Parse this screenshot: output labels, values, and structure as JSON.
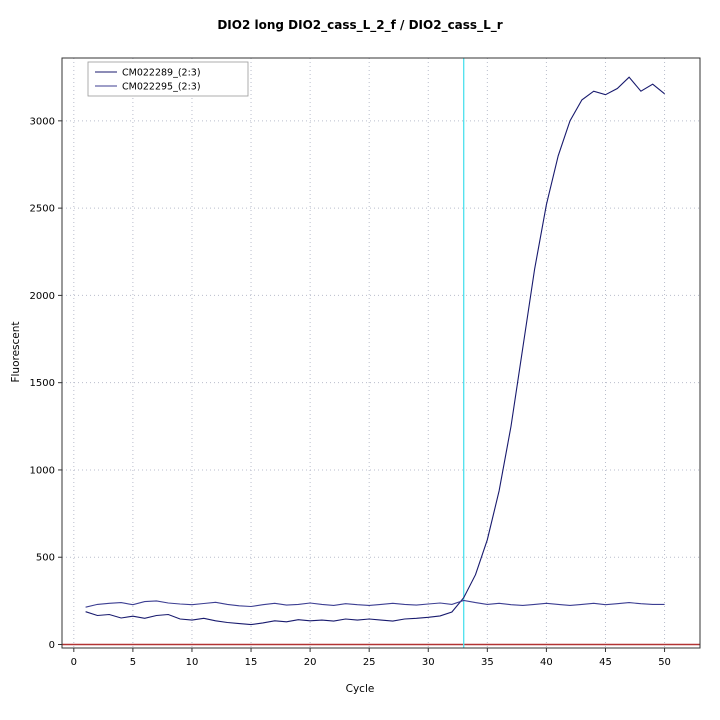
{
  "chart_data": {
    "type": "line",
    "title": "DIO2 long DIO2_cass_L_2_f / DIO2_cass_L_r",
    "xlabel": "Cycle",
    "ylabel": "Fluorescent",
    "xlim": [
      -1,
      53
    ],
    "ylim": [
      -20,
      3360
    ],
    "xticks": [
      0,
      5,
      10,
      15,
      20,
      25,
      30,
      35,
      40,
      45,
      50
    ],
    "yticks": [
      0,
      500,
      1000,
      1500,
      2000,
      2500,
      3000
    ],
    "grid": "dotted",
    "grid_color": "#b9bdcc",
    "box_color": "#333333",
    "legend_position": "top-left",
    "threshold_cycle": 33,
    "threshold_color": "#4de0ee",
    "baseline_value": 0,
    "baseline_color": "#b23333",
    "x": [
      1,
      2,
      3,
      4,
      5,
      6,
      7,
      8,
      9,
      10,
      11,
      12,
      13,
      14,
      15,
      16,
      17,
      18,
      19,
      20,
      21,
      22,
      23,
      24,
      25,
      26,
      27,
      28,
      29,
      30,
      31,
      32,
      33,
      34,
      35,
      36,
      37,
      38,
      39,
      40,
      41,
      42,
      43,
      44,
      45,
      46,
      47,
      48,
      49,
      50
    ],
    "series": [
      {
        "name": "CM022289_(2:3)",
        "color": "#181a6e",
        "values": [
          188,
          166,
          172,
          152,
          162,
          150,
          166,
          172,
          146,
          140,
          150,
          136,
          126,
          120,
          114,
          124,
          136,
          130,
          142,
          136,
          140,
          134,
          146,
          140,
          146,
          140,
          134,
          146,
          150,
          156,
          164,
          186,
          268,
          400,
          600,
          880,
          1250,
          1700,
          2150,
          2520,
          2800,
          3000,
          3120,
          3170,
          3150,
          3185,
          3250,
          3170,
          3210,
          3155
        ]
      },
      {
        "name": "CM022295_(2:3)",
        "color": "#3c3e92",
        "values": [
          214,
          230,
          236,
          240,
          228,
          246,
          250,
          238,
          232,
          228,
          235,
          242,
          230,
          222,
          218,
          228,
          236,
          226,
          230,
          238,
          230,
          224,
          234,
          228,
          224,
          230,
          236,
          230,
          226,
          232,
          238,
          230,
          252,
          240,
          230,
          236,
          228,
          224,
          230,
          236,
          230,
          224,
          230,
          236,
          228,
          234,
          240,
          234,
          230,
          230
        ]
      }
    ]
  }
}
